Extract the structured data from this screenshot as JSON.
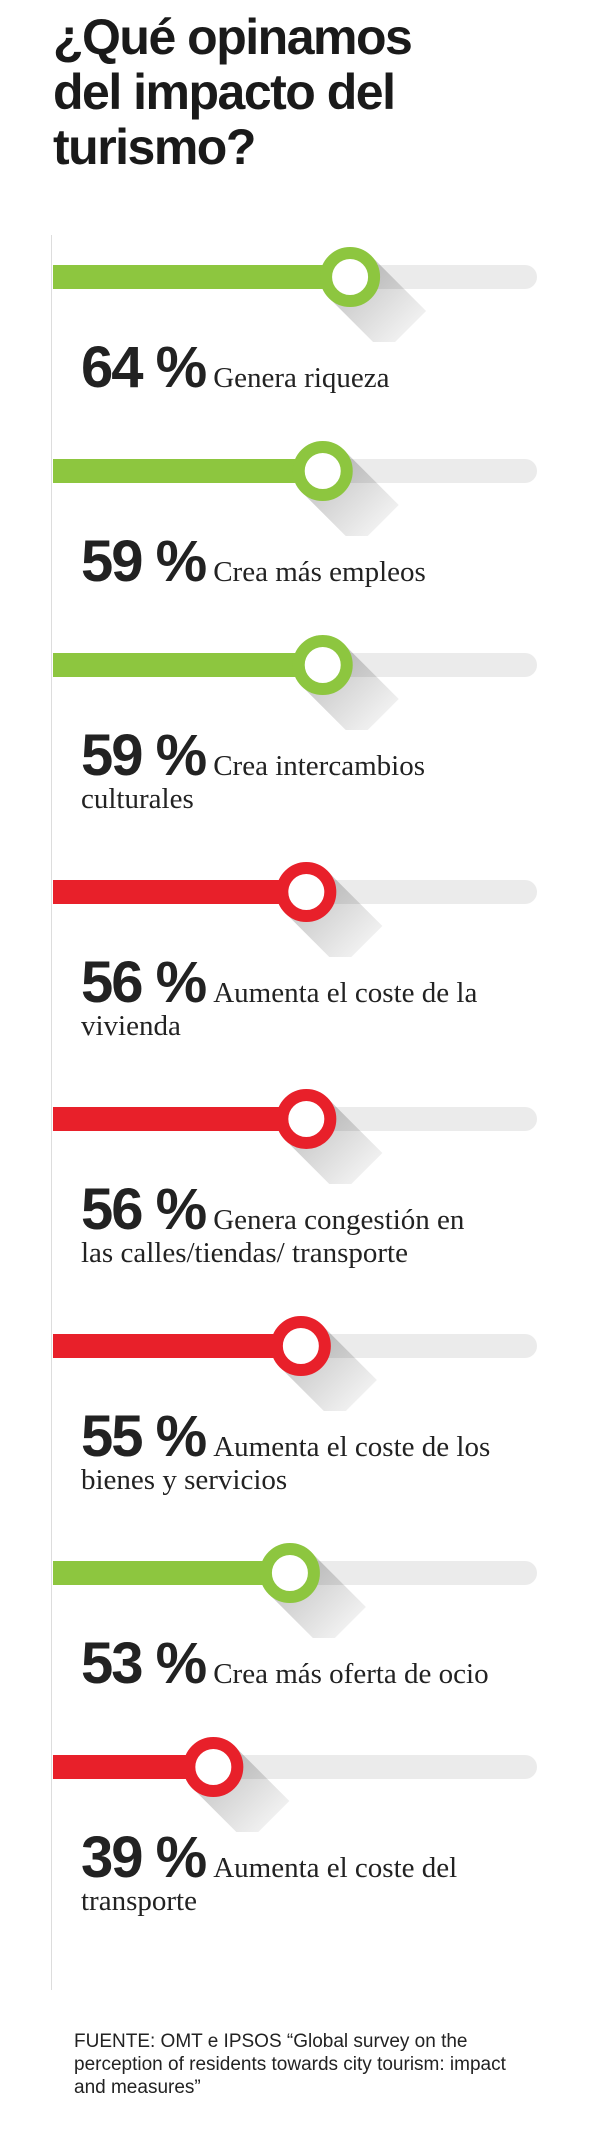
{
  "chart_data": {
    "type": "slider",
    "title": "¿Qué opinamos del impacto del turismo?",
    "categories": [
      "Genera riqueza",
      "Crea más empleos",
      "Crea intercambios culturales",
      "Aumenta el coste de la vivienda",
      "Genera congestión en las calles/tiendas/ transporte",
      "Aumenta el coste de los bienes y servicios",
      "Crea más oferta de ocio",
      "Aumenta el coste del transporte"
    ],
    "values": [
      64,
      59,
      59,
      56,
      56,
      55,
      53,
      39
    ],
    "value_labels": [
      "64 %",
      "59 %",
      "59 %",
      "56 %",
      "56 %",
      "55 %",
      "53 %",
      "39 %"
    ],
    "colors": [
      "#8dc63f",
      "#8dc63f",
      "#8dc63f",
      "#e8202a",
      "#e8202a",
      "#e8202a",
      "#8dc63f",
      "#e8202a"
    ],
    "xlim": [
      0,
      100
    ],
    "source": "FUENTE: OMT e IPSOS “Global survey on the perception of residents towards city tourism: impact and measures”"
  }
}
